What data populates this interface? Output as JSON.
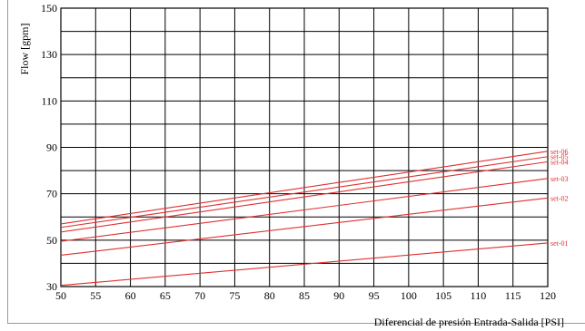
{
  "chart_data": {
    "type": "line",
    "xlabel": "Diferencial de presión Entrada-Salida [PSI]",
    "ylabel": "Flow [gpm]",
    "xlim": [
      50,
      120
    ],
    "ylim": [
      30,
      150
    ],
    "x_ticks": [
      50,
      55,
      60,
      65,
      70,
      75,
      80,
      85,
      90,
      95,
      100,
      105,
      110,
      115,
      120
    ],
    "y_ticks": [
      30,
      50,
      70,
      90,
      110,
      130,
      150
    ],
    "y_gridlines": [
      30,
      40,
      50,
      60,
      70,
      80,
      90,
      100,
      110,
      120,
      130,
      140,
      150
    ],
    "grid": true,
    "legend": "inline at right end of each line",
    "line_color": "#e03030",
    "grid_color": "#000000",
    "series": [
      {
        "name": "set-01",
        "x": [
          50,
          120
        ],
        "y": [
          30.5,
          48.8
        ]
      },
      {
        "name": "set-02",
        "x": [
          50,
          120
        ],
        "y": [
          43.5,
          68.2
        ]
      },
      {
        "name": "set-03",
        "x": [
          50,
          120
        ],
        "y": [
          49.5,
          76.6
        ]
      },
      {
        "name": "set-04",
        "x": [
          50,
          120
        ],
        "y": [
          53.5,
          83.8
        ]
      },
      {
        "name": "set-05",
        "x": [
          50,
          120
        ],
        "y": [
          55.5,
          86.0
        ]
      },
      {
        "name": "set-06",
        "x": [
          50,
          120
        ],
        "y": [
          57.0,
          88.3
        ]
      }
    ]
  }
}
